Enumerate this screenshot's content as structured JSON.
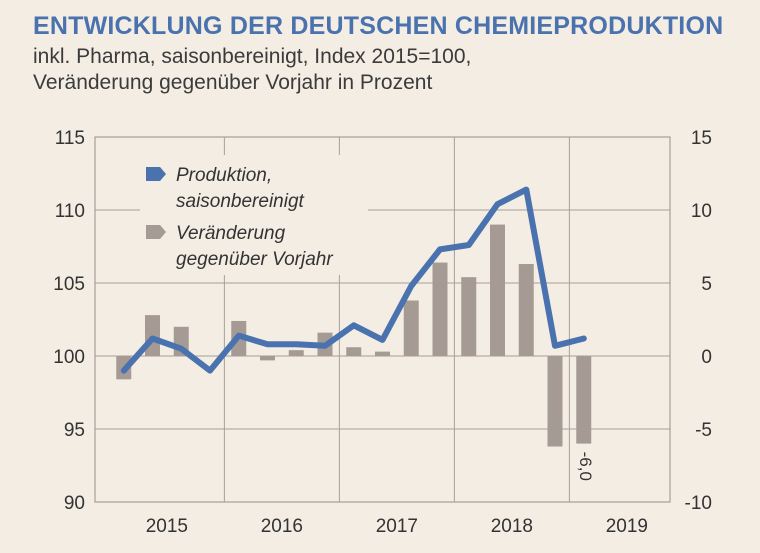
{
  "header": {
    "title": "ENTWICKLUNG DER DEUTSCHEN CHEMIEPRODUKTION",
    "subtitle_line1": "inkl. Pharma, saisonbereinigt, Index 2015=100,",
    "subtitle_line2": "Veränderung gegenüber Vorjahr in Prozent"
  },
  "colors": {
    "background": "#f3ede3",
    "line": "#4a72ae",
    "bars": "#a69b94",
    "grid": "#a8a098",
    "title": "#4a72ae"
  },
  "chart_data": {
    "type": "bar+line",
    "x_tick_labels": [
      "2015",
      "2016",
      "2017",
      "2018",
      "2019"
    ],
    "quarters": [
      "2015-Q1",
      "2015-Q2",
      "2015-Q3",
      "2015-Q4",
      "2016-Q1",
      "2016-Q2",
      "2016-Q3",
      "2016-Q4",
      "2017-Q1",
      "2017-Q2",
      "2017-Q3",
      "2017-Q4",
      "2018-Q1",
      "2018-Q2",
      "2018-Q3",
      "2018-Q4",
      "2019-Q1",
      "2019-Q2",
      "2019-Q3"
    ],
    "y_left": {
      "ylim": [
        90,
        115
      ],
      "ticks": [
        "115",
        "110",
        "105",
        "100",
        "95",
        "90"
      ]
    },
    "y_right": {
      "ylim": [
        -10,
        15
      ],
      "ticks": [
        "15",
        "10",
        "5",
        "0",
        "-5",
        "-10"
      ]
    },
    "grid": "horizontal and yearly vertical",
    "legend_placement": "top-left",
    "series": [
      {
        "name": "Produktion, saisonbereinigt",
        "axis": "left",
        "type": "line",
        "values": [
          99.0,
          101.2,
          100.5,
          99.0,
          101.4,
          100.8,
          100.8,
          100.7,
          102.1,
          101.1,
          104.8,
          107.3,
          107.6,
          110.4,
          111.4,
          100.7,
          101.2,
          null,
          null
        ]
      },
      {
        "name": "Veränderung gegenüber Vorjahr",
        "axis": "right",
        "type": "bar",
        "values": [
          -1.6,
          2.8,
          2.0,
          null,
          2.4,
          -0.3,
          0.4,
          1.6,
          0.6,
          0.3,
          3.8,
          6.4,
          5.4,
          9.0,
          6.3,
          -6.2,
          -6.0,
          null,
          null
        ]
      }
    ],
    "data_labels": [
      {
        "text": "-6,0"
      }
    ]
  },
  "legend": {
    "line_label_1": "Produktion,",
    "line_label_2": "saisonbereinigt",
    "bar_label_1": "Veränderung",
    "bar_label_2": "gegenüber Vorjahr"
  }
}
